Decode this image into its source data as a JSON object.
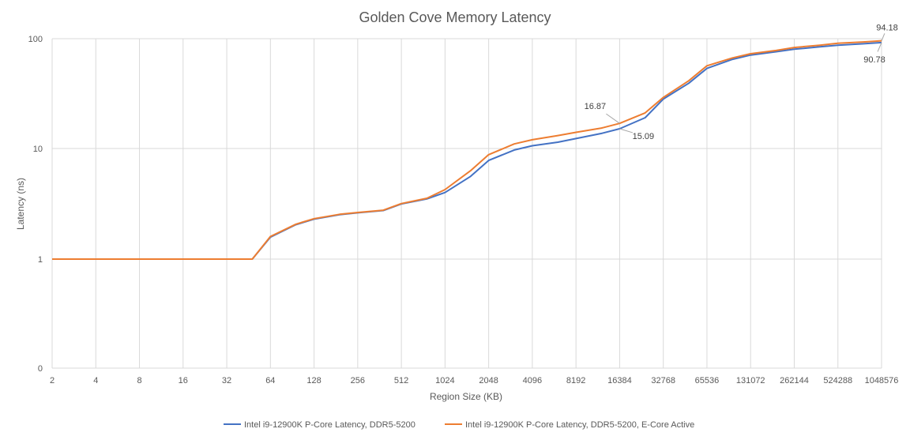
{
  "chart_data": {
    "type": "line",
    "title": "Golden Cove Memory Latency",
    "xlabel": "Region Size (KB)",
    "ylabel": "Latency (ns)",
    "yscale": "log",
    "ytick_labels": [
      "0",
      "1",
      "10",
      "100"
    ],
    "xtick_labels": [
      "2",
      "4",
      "8",
      "16",
      "32",
      "64",
      "128",
      "256",
      "512",
      "1024",
      "2048",
      "4096",
      "8192",
      "16384",
      "32768",
      "65536",
      "131072",
      "262144",
      "524288",
      "1048576"
    ],
    "grid": true,
    "legend_position": "bottom",
    "x": [
      2,
      4,
      8,
      16,
      32,
      48,
      64,
      96,
      128,
      192,
      256,
      384,
      512,
      768,
      1024,
      1536,
      2048,
      3072,
      4096,
      6144,
      8192,
      12288,
      16384,
      24576,
      32768,
      49152,
      65536,
      98304,
      131072,
      196608,
      262144,
      393216,
      524288,
      786432,
      1048576
    ],
    "series": [
      {
        "name": "Intel i9-12900K P-Core Latency, DDR5-5200",
        "color": "#4472c4",
        "values": [
          1.0,
          1.0,
          1.0,
          1.0,
          1.0,
          1.0,
          1.58,
          2.05,
          2.3,
          2.52,
          2.62,
          2.75,
          3.15,
          3.5,
          4.0,
          5.6,
          7.8,
          9.7,
          10.6,
          11.4,
          12.3,
          13.7,
          15.09,
          19.0,
          28.0,
          39.0,
          53.0,
          64.0,
          70.0,
          75.0,
          79.0,
          83.0,
          86.0,
          88.5,
          90.78
        ]
      },
      {
        "name": "Intel i9-12900K P-Core Latency, DDR5-5200, E-Core Active",
        "color": "#ed7d31",
        "values": [
          1.0,
          1.0,
          1.0,
          1.0,
          1.0,
          1.0,
          1.6,
          2.07,
          2.32,
          2.54,
          2.64,
          2.77,
          3.18,
          3.55,
          4.25,
          6.3,
          8.8,
          11.0,
          12.0,
          13.1,
          14.0,
          15.3,
          16.87,
          21.0,
          29.0,
          41.0,
          56.0,
          66.0,
          72.0,
          77.0,
          82.0,
          86.0,
          89.5,
          92.0,
          94.18
        ]
      }
    ],
    "annotations": [
      {
        "series": 1,
        "x": 16384,
        "value": 16.87,
        "text": "16.87"
      },
      {
        "series": 0,
        "x": 16384,
        "value": 15.09,
        "text": "15.09"
      },
      {
        "series": 1,
        "x": 1048576,
        "value": 94.18,
        "text": "94.18"
      },
      {
        "series": 0,
        "x": 1048576,
        "value": 90.78,
        "text": "90.78"
      }
    ]
  }
}
